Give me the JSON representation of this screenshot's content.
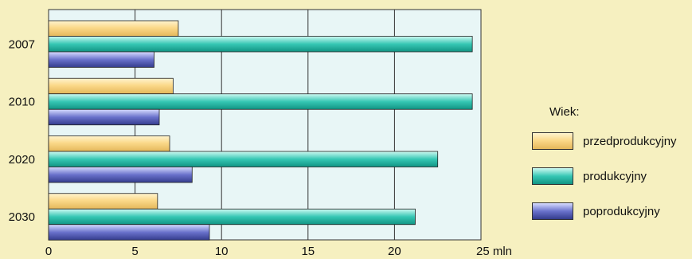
{
  "chart_data": {
    "type": "bar",
    "orientation": "horizontal",
    "categories": [
      "2007",
      "2010",
      "2020",
      "2030"
    ],
    "series": [
      {
        "name": "przedprodukcyjny",
        "values": [
          7.5,
          7.2,
          7.0,
          6.3
        ],
        "color": "#f8d48a"
      },
      {
        "name": "produkcyjny",
        "values": [
          24.5,
          24.5,
          22.5,
          21.2
        ],
        "color": "#35c3b1"
      },
      {
        "name": "poprodukcyjny",
        "values": [
          6.1,
          6.4,
          8.3,
          9.3
        ],
        "color": "#5a62c2"
      }
    ],
    "x_ticks": [
      "0",
      "5",
      "10",
      "15",
      "20",
      "25 mln"
    ],
    "xlim": [
      0,
      25
    ],
    "grid": true,
    "legend_position": "right",
    "legend_title": "Wiek:",
    "plot_background": "#e8f6f6",
    "page_background": "#f6f0c0"
  }
}
